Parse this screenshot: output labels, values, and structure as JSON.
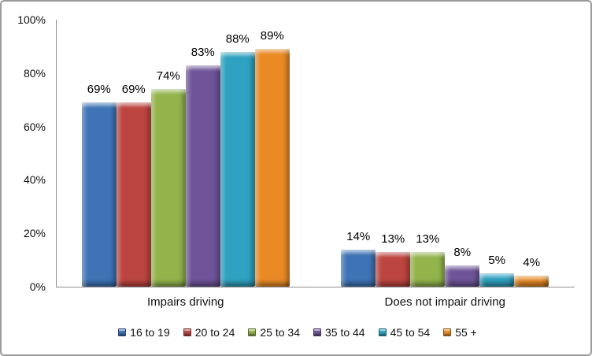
{
  "frame": {
    "background_color": "#ffffff",
    "border_color": "#9b9b9b",
    "axis_color": "#8f8f8f",
    "text_color": "#111111"
  },
  "chart_data": {
    "type": "bar",
    "title": "",
    "xlabel": "",
    "ylabel": "",
    "categories": [
      "Impairs driving",
      "Does not impair driving"
    ],
    "series": [
      {
        "name": "16 to 19",
        "color": "#3E74B5",
        "values": [
          69,
          14
        ]
      },
      {
        "name": "20 to 24",
        "color": "#BC4540",
        "values": [
          69,
          13
        ]
      },
      {
        "name": "25 to 34",
        "color": "#92B44B",
        "values": [
          74,
          13
        ]
      },
      {
        "name": "35 to 44",
        "color": "#6F5499",
        "values": [
          83,
          8
        ]
      },
      {
        "name": "45 to 54",
        "color": "#2EA2C0",
        "values": [
          88,
          5
        ]
      },
      {
        "name": "55 +",
        "color": "#E98A25",
        "values": [
          89,
          4
        ]
      }
    ],
    "data_labels": [
      [
        "69%",
        "69%",
        "74%",
        "83%",
        "88%",
        "89%"
      ],
      [
        "14%",
        "13%",
        "13%",
        "8%",
        "5%",
        "4%"
      ]
    ],
    "value_suffix": "%",
    "y_axis": {
      "min": 0,
      "max": 100,
      "tick_step": 20,
      "tick_labels": [
        "0%",
        "20%",
        "40%",
        "60%",
        "80%",
        "100%"
      ]
    },
    "gridlines": false,
    "legend_position": "bottom"
  }
}
